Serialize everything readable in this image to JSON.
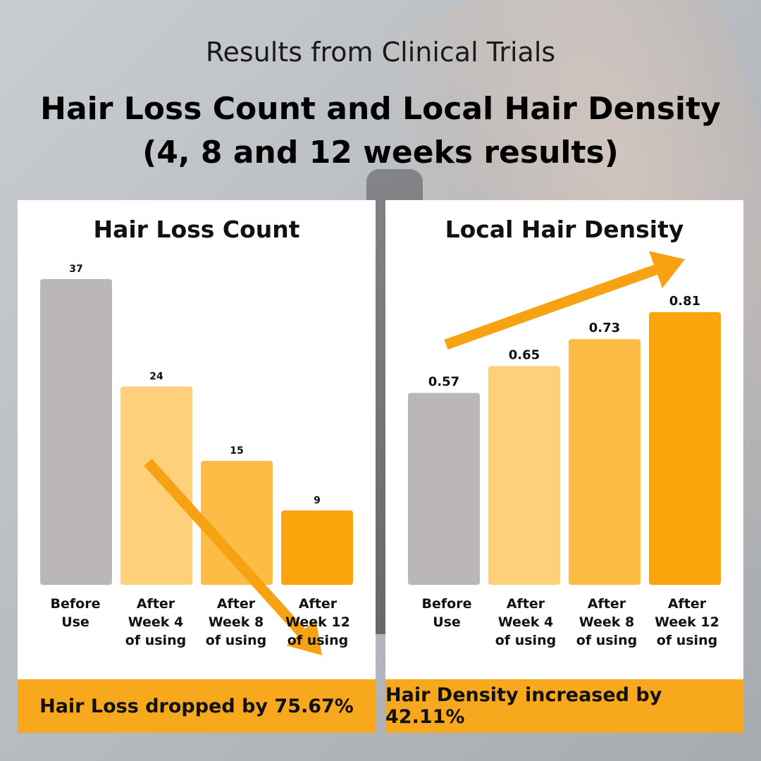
{
  "header": {
    "subtitle": "Results from Clinical Trials",
    "title_line1": "Hair Loss Count and Local Hair Density",
    "title_line2": "(4, 8 and 12 weeks results)"
  },
  "colors": {
    "gray": "#bbb6b8",
    "light_yellow": "#fed07a",
    "mid_yellow": "#fdbc45",
    "orange": "#f9a50b",
    "footer_bg": "#f8a81c",
    "arrow": "#f7a212"
  },
  "chart_data": [
    {
      "type": "bar",
      "title": "Hair Loss Count",
      "categories": [
        "Before\nUse",
        "After\nWeek 4\nof using",
        "After\nWeek 8\nof using",
        "After\nWeek 12\nof using"
      ],
      "values": [
        37,
        24,
        15,
        9
      ],
      "value_labels": [
        "37",
        "24",
        "15",
        "9"
      ],
      "ylim": [
        0,
        37
      ],
      "trend": "down",
      "footer": "Hair Loss dropped by 75.67%"
    },
    {
      "type": "bar",
      "title": "Local Hair Density",
      "categories": [
        "Before\nUse",
        "After\nWeek 4\nof using",
        "After\nWeek 8\nof using",
        "After\nWeek 12\nof using"
      ],
      "values": [
        0.57,
        0.65,
        0.73,
        0.81
      ],
      "value_labels": [
        "0.57",
        "0.65",
        "0.73",
        "0.81"
      ],
      "ylim": [
        0,
        0.81
      ],
      "trend": "up",
      "footer": "Hair Density increased by 42.11%"
    }
  ]
}
